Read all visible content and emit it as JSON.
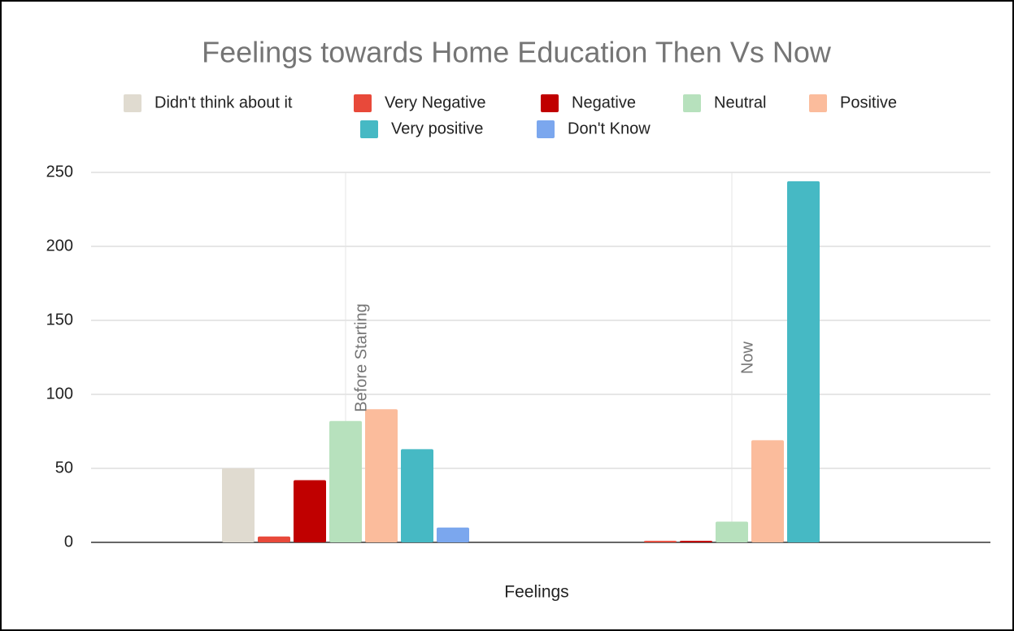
{
  "chart_data": {
    "type": "bar",
    "title": "Feelings towards Home Education Then Vs Now",
    "x_label": "Feelings",
    "categories": [
      "Before Starting",
      "Now"
    ],
    "series": [
      {
        "name": "Didn't think about it",
        "color": "#e0dbd0",
        "values": [
          50,
          0
        ]
      },
      {
        "name": "Very Negative",
        "color": "#e8493a",
        "values": [
          4,
          1
        ]
      },
      {
        "name": "Negative",
        "color": "#c00000",
        "values": [
          42,
          1
        ]
      },
      {
        "name": "Neutral",
        "color": "#b7e1bd",
        "values": [
          82,
          14
        ]
      },
      {
        "name": "Positive",
        "color": "#fbbc9c",
        "values": [
          90,
          69
        ]
      },
      {
        "name": "Very positive",
        "color": "#46b9c4",
        "values": [
          63,
          244
        ]
      },
      {
        "name": "Don't Know",
        "color": "#7ba7ee",
        "values": [
          10,
          0
        ]
      }
    ],
    "ylim": [
      0,
      250
    ],
    "yticks": [
      0,
      50,
      100,
      150,
      200,
      250
    ],
    "grid": true,
    "legend": "top"
  }
}
